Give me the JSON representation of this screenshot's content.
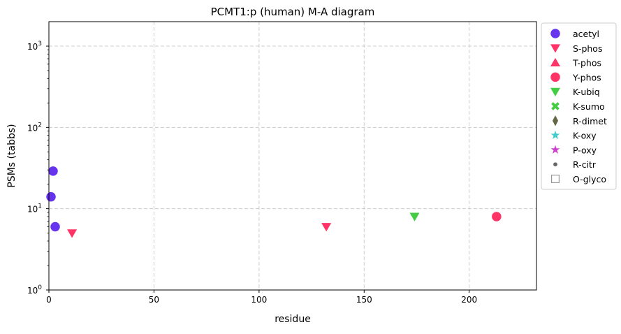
{
  "chart_data": {
    "type": "scatter",
    "title": "PCMT1:p (human) M-A diagram",
    "xlabel": "residue",
    "ylabel": "PSMs (tabbs)",
    "xlim": [
      0,
      232
    ],
    "ylim": [
      1,
      2000
    ],
    "yscale": "log",
    "grid": true,
    "legend_position": "outside-right",
    "x_ticks": [
      0,
      50,
      100,
      150,
      200
    ],
    "y_ticks": [
      1,
      10,
      100,
      1000
    ],
    "y_tick_labels": [
      {
        "base": "10",
        "exp": "0"
      },
      {
        "base": "10",
        "exp": "1"
      },
      {
        "base": "10",
        "exp": "2"
      },
      {
        "base": "10",
        "exp": "3"
      }
    ],
    "series": [
      {
        "name": "acetyl",
        "marker": "circle",
        "color": "#6633ee",
        "points": [
          [
            1,
            14
          ],
          [
            2,
            29
          ],
          [
            3,
            6
          ]
        ]
      },
      {
        "name": "S-phos",
        "marker": "triangle-down",
        "color": "#ff3366",
        "points": [
          [
            11,
            5
          ],
          [
            132,
            6
          ]
        ]
      },
      {
        "name": "T-phos",
        "marker": "triangle-up",
        "color": "#ff3366",
        "points": []
      },
      {
        "name": "Y-phos",
        "marker": "circle",
        "color": "#ff3366",
        "points": [
          [
            213,
            8
          ]
        ]
      },
      {
        "name": "K-ubiq",
        "marker": "triangle-down",
        "color": "#44cc44",
        "points": [
          [
            174,
            8
          ]
        ]
      },
      {
        "name": "K-sumo",
        "marker": "x-cross",
        "color": "#44cc44",
        "points": []
      },
      {
        "name": "R-dimet",
        "marker": "thin-diamond",
        "color": "#666644",
        "points": []
      },
      {
        "name": "K-oxy",
        "marker": "star",
        "color": "#44cccc",
        "points": []
      },
      {
        "name": "P-oxy",
        "marker": "star",
        "color": "#cc44cc",
        "points": []
      },
      {
        "name": "R-citr",
        "marker": "small-circle",
        "color": "#666666",
        "points": []
      },
      {
        "name": "O-glyco",
        "marker": "open-square",
        "color": "#999999",
        "points": []
      }
    ]
  }
}
